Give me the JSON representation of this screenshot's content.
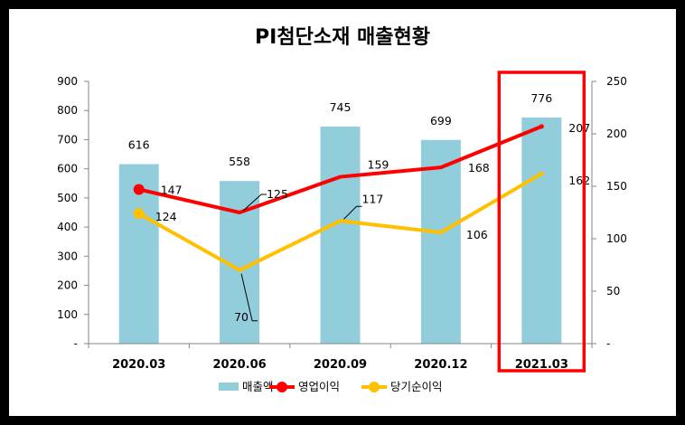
{
  "chart_data": {
    "type": "bar+line",
    "title": "PI첨단소재 매출현황",
    "categories": [
      "2020.03",
      "2020.06",
      "2020.09",
      "2020.12",
      "2021.03"
    ],
    "y_left": {
      "ticks": [
        "900",
        "800",
        "700",
        "600",
        "500",
        "400",
        "300",
        "200",
        "100",
        "-"
      ],
      "ylim": [
        0,
        900
      ]
    },
    "y_right": {
      "ticks": [
        "250",
        "200",
        "150",
        "100",
        "50",
        "-"
      ],
      "ylim": [
        0,
        250
      ]
    },
    "series": [
      {
        "name": "매출액",
        "kind": "bar",
        "axis": "left",
        "color": "#92CDDC",
        "values": [
          616,
          558,
          745,
          699,
          776
        ],
        "labels": [
          "616",
          "558",
          "745",
          "699",
          "776"
        ]
      },
      {
        "name": "영업이익",
        "kind": "line",
        "axis": "right",
        "color": "#FF0000",
        "values": [
          147,
          125,
          159,
          168,
          207
        ],
        "labels": [
          "147",
          "125",
          "159",
          "168",
          "207"
        ]
      },
      {
        "name": "당기순이익",
        "kind": "line",
        "axis": "right",
        "color": "#FFC000",
        "values": [
          124,
          70,
          117,
          106,
          162
        ],
        "labels": [
          "124",
          "70",
          "117",
          "106",
          "162"
        ]
      }
    ],
    "highlight": {
      "category": "2021.03",
      "color": "#FF0000"
    },
    "legend_position": "bottom"
  }
}
